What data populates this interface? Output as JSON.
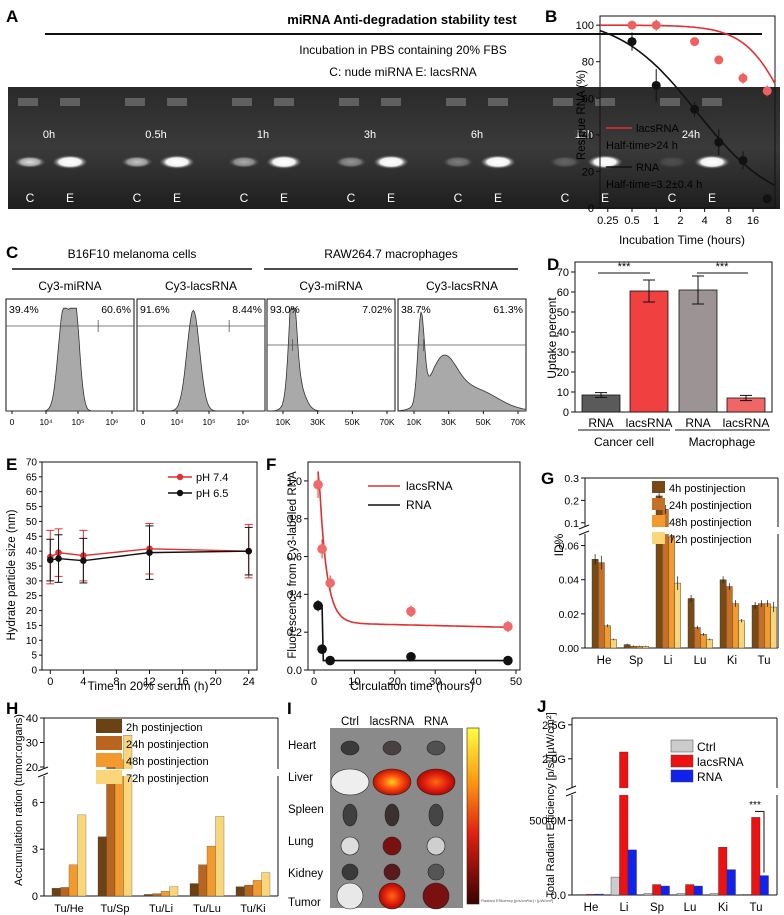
{
  "panels": {
    "A": {
      "letter": "A",
      "header": "miRNA Anti-degradation stability test",
      "subtitle": "Incubation in PBS containing 20% FBS",
      "legend": "C: nude miRNA    E: lacsRNA",
      "lanes": [
        "0h",
        "0.5h",
        "1h",
        "3h",
        "6h",
        "12h",
        "24h"
      ],
      "lane_letters": [
        "C",
        "E"
      ]
    },
    "B": {
      "letter": "B",
      "ylabel": "Residue RNA (%)",
      "xlabel": "Incubation Time (hours)",
      "xticks": [
        "0.25",
        "0.5",
        "1",
        "2",
        "4",
        "8",
        "16"
      ],
      "yticks": [
        "0",
        "20",
        "40",
        "60",
        "80",
        "100"
      ],
      "legend": [
        {
          "name": "lacsRNA",
          "color": "#e03030",
          "note": "Half-time>24 h"
        },
        {
          "name": "RNA",
          "color": "#111111",
          "note": "Half-time=3.2±0.4 h"
        }
      ]
    },
    "C": {
      "letter": "C",
      "group1": "B16F10 melanoma cells",
      "group2": "RAW264.7 macrophages",
      "plots": [
        {
          "title": "Cy3-miRNA",
          "left": "39.4%",
          "right": "60.6%",
          "ticks": [
            "0",
            "10⁴",
            "10⁵",
            "10⁶"
          ]
        },
        {
          "title": "Cy3-lacsRNA",
          "left": "91.6%",
          "right": "8.44%",
          "ticks": [
            "0",
            "10⁴",
            "10⁵",
            "10⁶"
          ]
        },
        {
          "title": "Cy3-miRNA",
          "left": "93.0%",
          "right": "7.02%",
          "ticks": [
            "10K",
            "30K",
            "50K",
            "70K"
          ]
        },
        {
          "title": "Cy3-lacsRNA",
          "left": "38.7%",
          "right": "61.3%",
          "ticks": [
            "10K",
            "30K",
            "50K",
            "70K"
          ]
        }
      ]
    },
    "D": {
      "letter": "D",
      "ylabel": "Uptake percent",
      "yticks": [
        "0",
        "10",
        "20",
        "30",
        "40",
        "50",
        "60",
        "70"
      ],
      "signif": "***",
      "groups": [
        "Cancer cell",
        "Macrophage"
      ]
    },
    "E": {
      "letter": "E",
      "ylabel": "Hydrate particle size (nm)",
      "xlabel": "Time in 20% serum (h)",
      "xticks": [
        "0",
        "4",
        "8",
        "12",
        "16",
        "20",
        "24"
      ],
      "yticks": [
        "0",
        "5",
        "10",
        "15",
        "20",
        "25",
        "30",
        "35",
        "40",
        "45",
        "50",
        "55",
        "60",
        "65",
        "70"
      ]
    },
    "F": {
      "letter": "F",
      "ylabel": "Fluorescence from Cy3-labeled RNA",
      "xlabel": "Circulation time (hours)",
      "xticks": [
        "0",
        "10",
        "20",
        "30",
        "40",
        "50"
      ],
      "yticks": [
        "0.0",
        "0.2",
        "0.4",
        "0.6",
        "0.8",
        "1.0"
      ]
    },
    "G": {
      "letter": "G",
      "ylabel": "ID%",
      "yticks_low": [
        "0.00",
        "0.02",
        "0.04",
        "0.06"
      ],
      "yticks_high": [
        "0.1",
        "0.2",
        "0.3"
      ]
    },
    "H": {
      "letter": "H",
      "ylabel": "Accumulation ration (tumor:organs)",
      "yticks_low": [
        "0",
        "3",
        "6"
      ],
      "yticks_high": [
        "20",
        "30",
        "40"
      ]
    },
    "I": {
      "letter": "I",
      "cols": [
        "Ctrl",
        "lacsRNA",
        "RNA"
      ],
      "rows": [
        "Heart",
        "Liver",
        "Spleen",
        "Lung",
        "Kidney",
        "Tumor"
      ],
      "colorbar_caption": "Radiant Efficiency [p/s/cm²/sr] / [µW/cm²]"
    },
    "J": {
      "letter": "J",
      "ylabel": "Total Radiant Efficiency [p/s]/[µW/cm²]",
      "yticks": [
        "0.0",
        "500.0M",
        "2.0G",
        "2.5G"
      ],
      "signif": "***"
    }
  },
  "chart_data": [
    {
      "panel": "B",
      "type": "scatter",
      "xlabel": "Incubation Time (hours)",
      "ylabel": "Residue RNA (%)",
      "xscale": "log2",
      "xlim": [
        0.2,
        30
      ],
      "ylim": [
        0,
        105
      ],
      "series": [
        {
          "name": "lacsRNA",
          "color": "#e03030",
          "x": [
            0.5,
            1,
            3,
            6,
            12,
            24
          ],
          "y": [
            100,
            100,
            91,
            81,
            71,
            64
          ],
          "err": [
            2,
            3,
            2,
            2,
            3,
            3
          ]
        },
        {
          "name": "RNA",
          "color": "#111111",
          "x": [
            0.5,
            1,
            3,
            6,
            12,
            24
          ],
          "y": [
            91,
            67,
            54,
            36,
            26,
            5
          ],
          "err": [
            5,
            9,
            4,
            7,
            5,
            2
          ]
        }
      ]
    },
    {
      "panel": "D",
      "type": "bar",
      "ylabel": "Uptake percent",
      "ylim": [
        0,
        75
      ],
      "categories": [
        "RNA",
        "lacsRNA",
        "RNA",
        "lacsRNA"
      ],
      "groups": [
        "Cancer cell",
        "Macrophage"
      ],
      "values": [
        8.5,
        60.5,
        61.0,
        7.0
      ],
      "errors": [
        1.2,
        5.5,
        7.0,
        1.3
      ],
      "colors": [
        "#5a5a5a",
        "#f04040",
        "#9c9494",
        "#f06666"
      ]
    },
    {
      "panel": "E",
      "type": "line",
      "xlabel": "Time in 20% serum (h)",
      "ylabel": "Hydrate particle size (nm)",
      "xlim": [
        -1,
        25
      ],
      "ylim": [
        0,
        70
      ],
      "series": [
        {
          "name": "pH 7.4",
          "color": "#e03030",
          "x": [
            0,
            1,
            4,
            12,
            24
          ],
          "y": [
            38,
            39.5,
            38.5,
            40.8,
            40
          ],
          "err": [
            9,
            8,
            8.5,
            8.5,
            9
          ]
        },
        {
          "name": "pH 6.5",
          "color": "#111111",
          "x": [
            0,
            1,
            4,
            12,
            24
          ],
          "y": [
            37,
            37.5,
            36.8,
            39.5,
            40
          ],
          "err": [
            7,
            8,
            7.5,
            9,
            8
          ]
        }
      ]
    },
    {
      "panel": "F",
      "type": "scatter",
      "xlabel": "Circulation time (hours)",
      "ylabel": "Fluorescence from Cy3-labeled RNA",
      "xlim": [
        0,
        50
      ],
      "ylim": [
        0,
        1.1
      ],
      "series": [
        {
          "name": "lacsRNA",
          "color": "#e03030",
          "x": [
            1,
            2,
            4,
            24,
            48
          ],
          "y": [
            0.98,
            0.64,
            0.46,
            0.31,
            0.23
          ],
          "err": [
            0.07,
            0.05,
            0.04,
            0.03,
            0.03
          ]
        },
        {
          "name": "RNA",
          "color": "#111111",
          "x": [
            1,
            2,
            4,
            24,
            48
          ],
          "y": [
            0.34,
            0.11,
            0.05,
            0.07,
            0.05
          ],
          "err": [
            0.03,
            0.02,
            0.01,
            0.01,
            0.01
          ]
        }
      ]
    },
    {
      "panel": "G",
      "type": "bar",
      "ylabel": "ID%",
      "categories": [
        "He",
        "Sp",
        "Li",
        "Lu",
        "Ki",
        "Tu"
      ],
      "series": [
        {
          "name": "4h postinjection",
          "color": "#7a4a16",
          "values": [
            0.052,
            0.002,
            0.22,
            0.029,
            0.04,
            0.025
          ],
          "err": [
            0.003,
            0.0005,
            0.02,
            0.002,
            0.002,
            0.002
          ]
        },
        {
          "name": "24h postinjection",
          "color": "#c57027",
          "values": [
            0.05,
            0.001,
            0.16,
            0.012,
            0.036,
            0.026
          ],
          "err": [
            0.004,
            0.0005,
            0.02,
            0.001,
            0.002,
            0.002
          ]
        },
        {
          "name": "48h postinjection",
          "color": "#f29a2e",
          "values": [
            0.013,
            0.001,
            0.065,
            0.008,
            0.026,
            0.026
          ],
          "err": [
            0.0008,
            0.0003,
            0.003,
            0.0008,
            0.002,
            0.002
          ]
        },
        {
          "name": "72h postinjection",
          "color": "#f9d67a",
          "values": [
            0.005,
            0.001,
            0.038,
            0.005,
            0.016,
            0.024
          ],
          "err": [
            0.0005,
            0.0003,
            0.004,
            0.0005,
            0.001,
            0.003
          ]
        }
      ]
    },
    {
      "panel": "H",
      "type": "bar",
      "ylabel": "Accumulation ration (tumor:organs)",
      "categories": [
        "Tu/He",
        "Tu/Sp",
        "Tu/Li",
        "Tu/Lu",
        "Tu/Ki"
      ],
      "series": [
        {
          "name": "2h postinjection",
          "color": "#6b4214",
          "values": [
            0.5,
            3.8,
            0.1,
            0.8,
            0.6
          ]
        },
        {
          "name": "24h postinjection",
          "color": "#b8651f",
          "values": [
            0.55,
            21,
            0.15,
            2.0,
            0.7
          ]
        },
        {
          "name": "48h postinjection",
          "color": "#f29a2e",
          "values": [
            2.0,
            23,
            0.3,
            3.2,
            1.0
          ]
        },
        {
          "name": "72h postinjection",
          "color": "#f9d67a",
          "values": [
            5.2,
            33,
            0.6,
            5.1,
            1.5
          ]
        }
      ]
    },
    {
      "panel": "J",
      "type": "bar",
      "ylabel": "Total Radiant Efficiency [p/s]/[µW/cm²]",
      "categories": [
        "He",
        "Li",
        "Sp",
        "Lu",
        "Ki",
        "Tu"
      ],
      "series": [
        {
          "name": "Ctrl",
          "color": "#cccccc",
          "values": [
            4000000.0,
            120000000.0,
            10000000.0,
            10000000.0,
            10000000.0,
            5000000.0
          ]
        },
        {
          "name": "lacsRNA",
          "color": "#ee1111",
          "values": [
            5000000.0,
            2100000000.0,
            70000000.0,
            70000000.0,
            320000000.0,
            520000000.0
          ]
        },
        {
          "name": "RNA",
          "color": "#1122ee",
          "values": [
            6000000.0,
            660000000.0,
            60000000.0,
            60000000.0,
            170000000.0,
            130000000.0
          ]
        }
      ]
    }
  ]
}
